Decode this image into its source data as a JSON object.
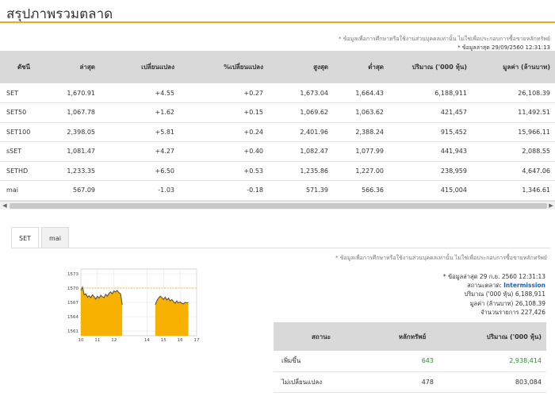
{
  "page": {
    "title": "สรุปภาพรวมตลาด"
  },
  "top_notes": {
    "disclaimer": "* ข้อมูลเพื่อการศึกษาหรือใช้งานส่วนบุคคลเท่านั้น ไม่ใช่เพื่อประกอบการซื้อขายหลักทรัพย์",
    "updated": "* ข้อมูลล่าสุด 29/09/2560 12:31:13"
  },
  "market_table": {
    "headers": [
      "ดัชนี",
      "ล่าสุด",
      "เปลี่ยนแปลง",
      "%เปลี่ยนแปลง",
      "สูงสุด",
      "ต่ำสุด",
      "ปริมาณ ('000 หุ้น)",
      "มูลค่า (ล้านบาท)"
    ],
    "rows": [
      {
        "index": "SET",
        "last": "1,670.91",
        "change": "+4.55",
        "pct": "+0.27",
        "high": "1,673.04",
        "low": "1,664.43",
        "volume": "6,188,911",
        "value": "26,108.39"
      },
      {
        "index": "SET50",
        "last": "1,067.78",
        "change": "+1.62",
        "pct": "+0.15",
        "high": "1,069.62",
        "low": "1,063.62",
        "volume": "421,457",
        "value": "11,492.51"
      },
      {
        "index": "SET100",
        "last": "2,398.05",
        "change": "+5.81",
        "pct": "+0.24",
        "high": "2,401.96",
        "low": "2,388.24",
        "volume": "915,452",
        "value": "15,966.11"
      },
      {
        "index": "sSET",
        "last": "1,081.47",
        "change": "+4.27",
        "pct": "+0.40",
        "high": "1,082.47",
        "low": "1,077.99",
        "volume": "441,943",
        "value": "2,088.55"
      },
      {
        "index": "SETHD",
        "last": "1,233.35",
        "change": "+6.50",
        "pct": "+0.53",
        "high": "1,235.86",
        "low": "1,227.00",
        "volume": "238,959",
        "value": "4,647.06"
      },
      {
        "index": "mai",
        "last": "567.09",
        "change": "-1.03",
        "pct": "-0.18",
        "high": "571.39",
        "low": "566.36",
        "volume": "415,004",
        "value": "1,346.61"
      }
    ]
  },
  "scrollbar": {
    "left_arrow": "◀",
    "right_arrow": "▶"
  },
  "tabs": [
    {
      "label": "SET"
    },
    {
      "label": "mai"
    }
  ],
  "detail_note": "* ข้อมูลเพื่อการศึกษาหรือใช้งานส่วนบุคคลเท่านั้น ไม่ใช่เพื่อประกอบการซื้อขายหลักทรัพย์",
  "detail_info": {
    "updated": "* ข้อมูลล่าสุด 29 ก.ย. 2560 12:31:13",
    "status_label": "สถานะตลาด:",
    "status_value": "Intermission",
    "volume_label": "ปริมาณ ('000 หุ้น)",
    "volume_value": "6,188,911",
    "value_label": "มูลค่า (ล้านบาท)",
    "value_value": "26,108.39",
    "deals_label": "จำนวนรายการ",
    "deals_value": "227,426"
  },
  "summary_table": {
    "headers": [
      "สถานะ",
      "หลักทรัพย์",
      "ปริมาณ ('000 หุ้น)"
    ],
    "rows": [
      {
        "status": "เพิ่มขึ้น",
        "count": "643",
        "volume": "2,938,414"
      },
      {
        "status": "ไม่เปลี่ยนแปลง",
        "count": "478",
        "volume": "803,084"
      }
    ]
  },
  "chart_data": {
    "type": "area",
    "x_ticks": [
      "10",
      "11",
      "12",
      "14",
      "15",
      "16",
      "17"
    ],
    "y_ticks": [
      1573,
      1570,
      1567,
      1564,
      1561
    ],
    "ylim": [
      1560,
      1574
    ],
    "xlim": [
      10,
      17
    ],
    "reference_line": 1570,
    "colors": {
      "fill": "#f7b100",
      "line": "#555555",
      "reference": "#f2a81d",
      "grid": "#e0e0e0"
    },
    "x": [
      10.0,
      10.1,
      10.2,
      10.3,
      10.4,
      10.5,
      10.6,
      10.7,
      10.8,
      10.9,
      11.0,
      11.1,
      11.2,
      11.3,
      11.4,
      11.5,
      11.6,
      11.7,
      11.8,
      11.9,
      12.0,
      12.1,
      12.2,
      12.3,
      12.4,
      12.5,
      14.5,
      14.6,
      14.7,
      14.8,
      14.9,
      15.0,
      15.1,
      15.2,
      15.3,
      15.4,
      15.5,
      15.6,
      15.7,
      15.8,
      15.9,
      16.0,
      16.1,
      16.2,
      16.3,
      16.4,
      16.5
    ],
    "y": [
      1569.5,
      1570.2,
      1568.6,
      1568.8,
      1568.1,
      1568.4,
      1568.0,
      1568.6,
      1568.2,
      1567.7,
      1568.3,
      1567.9,
      1568.5,
      1568.2,
      1568.0,
      1568.7,
      1568.3,
      1568.9,
      1569.2,
      1568.8,
      1569.4,
      1569.2,
      1569.5,
      1569.0,
      1568.8,
      1566.5,
      1566.5,
      1567.4,
      1567.9,
      1568.3,
      1568.0,
      1567.6,
      1568.1,
      1567.5,
      1567.9,
      1567.3,
      1567.6,
      1567.2,
      1566.8,
      1567.3,
      1566.9,
      1567.1,
      1566.8,
      1566.7,
      1567.0,
      1566.9,
      1567.0
    ]
  }
}
